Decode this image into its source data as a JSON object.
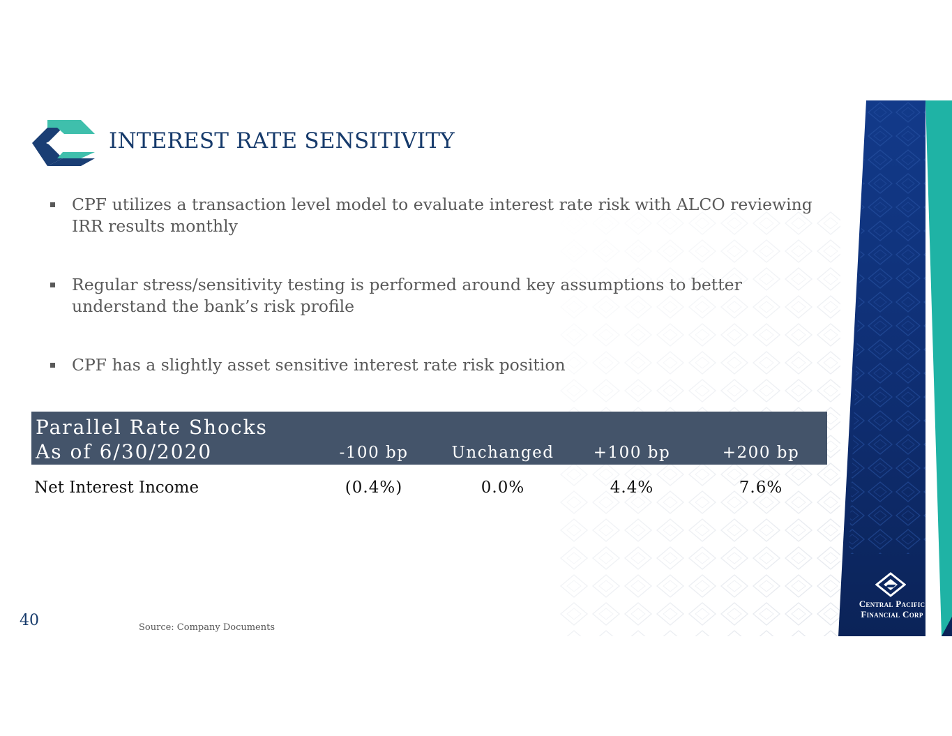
{
  "slide": {
    "title": "INTEREST RATE SENSITIVITY",
    "page_number": "40",
    "source": "Source:  Company Documents"
  },
  "bullets": [
    "CPF utilizes a transaction level model to evaluate interest rate risk with ALCO reviewing IRR results monthly",
    "Regular stress/sensitivity testing is performed around key assumptions to better understand the bank’s risk profile",
    "CPF has a slightly asset sensitive interest rate risk position"
  ],
  "table": {
    "header_line1": "Parallel Rate Shocks",
    "header_line2": "As of 6/30/2020",
    "columns": [
      "-100 bp",
      "Unchanged",
      "+100 bp",
      "+200 bp"
    ],
    "row_label": "Net Interest Income",
    "values": [
      "(0.4%)",
      "0.0%",
      "4.4%",
      "7.6%"
    ]
  },
  "brand": {
    "line1": "Central Pacific",
    "line2": "Financial Corp"
  },
  "colors": {
    "title": "#163a6b",
    "header_bg": "#44546a",
    "panel_navy": "#0f2d66",
    "accent_teal": "#1fb3a5"
  }
}
